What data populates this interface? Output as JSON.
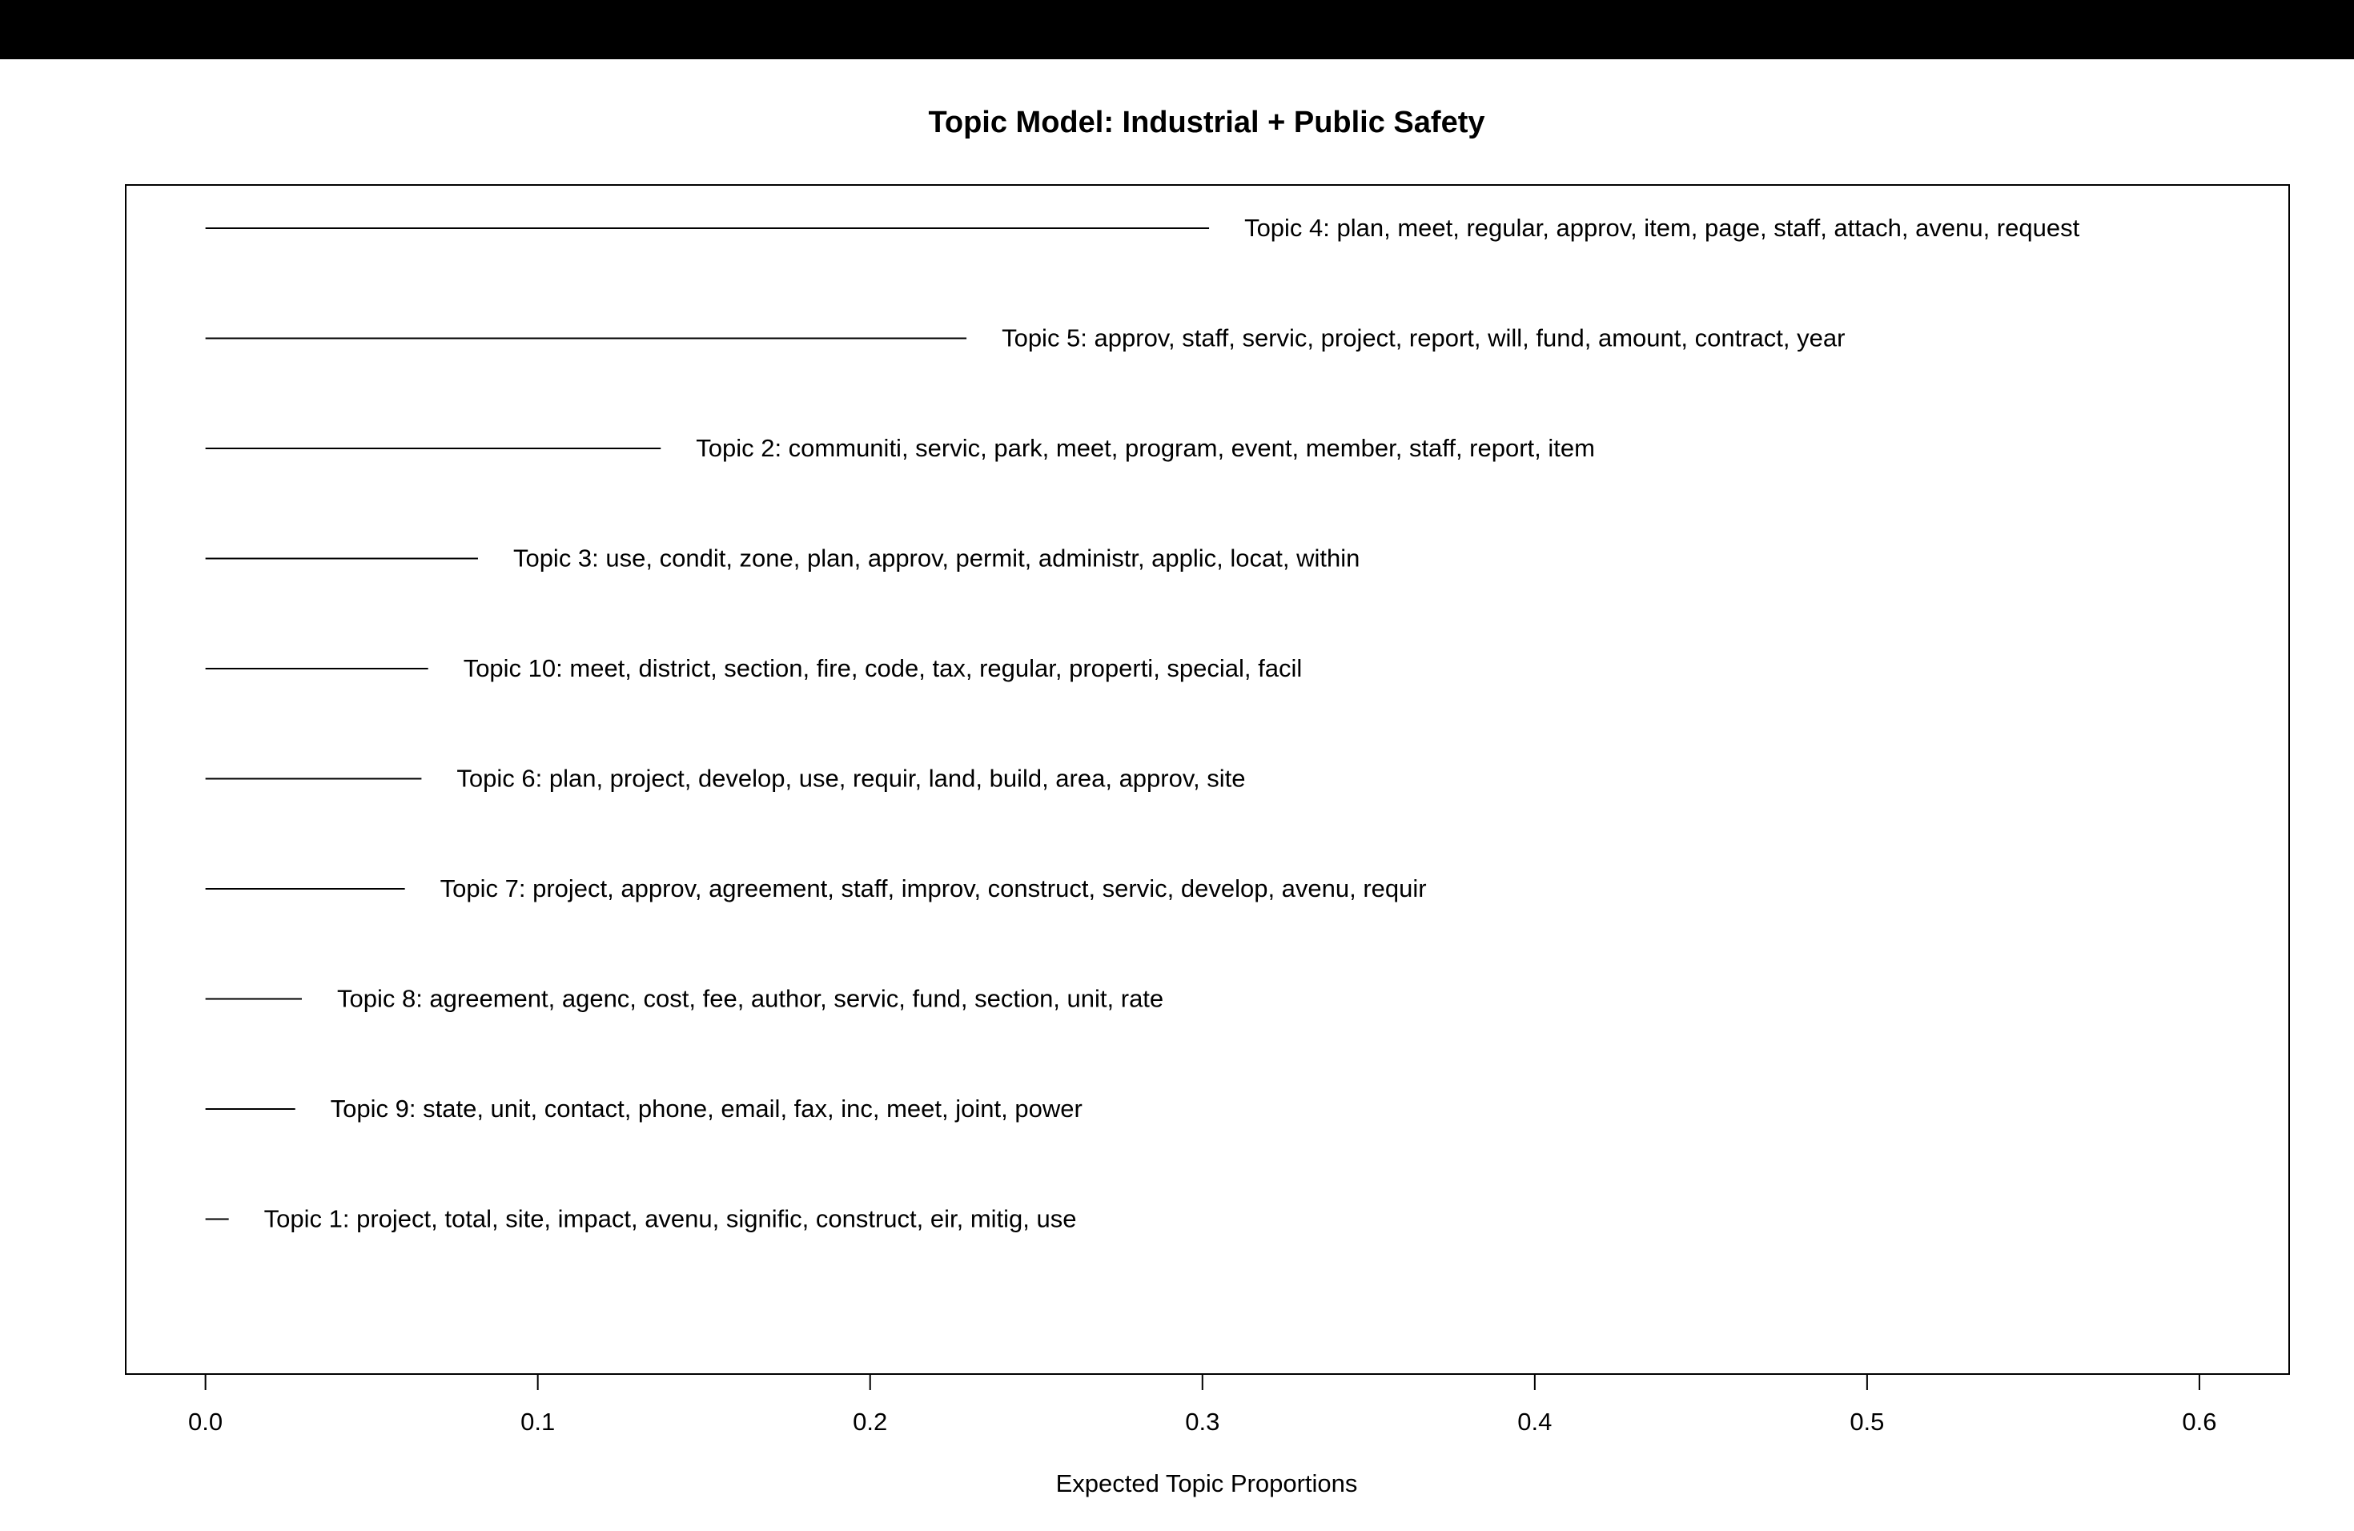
{
  "chart_data": {
    "type": "bar",
    "title": "Topic Model: Industrial + Public Safety",
    "xlabel": "Expected Topic Proportions",
    "ylabel": "",
    "xlim": [
      -0.024,
      0.627
    ],
    "x_ticks": [
      "0.0",
      "0.1",
      "0.2",
      "0.3",
      "0.4",
      "0.5",
      "0.6"
    ],
    "grid": false,
    "legend": "none",
    "orientation": "horizontal",
    "colors": {
      "line": "#000000",
      "frame": "#000000",
      "background": "#ffffff",
      "top_bar": "#000000"
    },
    "topics": [
      {
        "label": "Topic 4: plan, meet, regular, approv, item, page, staff, attach, avenu, request",
        "value": 0.302
      },
      {
        "label": "Topic 5: approv, staff, servic, project, report, will, fund, amount, contract, year",
        "value": 0.229
      },
      {
        "label": "Topic 2: communiti, servic, park, meet, program, event, member, staff, report, item",
        "value": 0.137
      },
      {
        "label": "Topic 3: use, condit, zone, plan, approv, permit, administr, applic, locat, within",
        "value": 0.082
      },
      {
        "label": "Topic 10: meet, district, section, fire, code, tax, regular, properti, special, facil",
        "value": 0.067
      },
      {
        "label": "Topic 6: plan, project, develop, use, requir, land, build, area, approv, site",
        "value": 0.065
      },
      {
        "label": "Topic 7: project, approv, agreement, staff, improv, construct, servic, develop, avenu, requir",
        "value": 0.06
      },
      {
        "label": "Topic 8: agreement, agenc, cost, fee, author, servic, fund, section, unit, rate",
        "value": 0.029
      },
      {
        "label": "Topic 9: state, unit, contact, phone, email, fax, inc, meet, joint, power",
        "value": 0.027
      },
      {
        "label": "Topic 1: project, total, site, impact, avenu, signific, construct, eir, mitig, use",
        "value": 0.007
      }
    ]
  }
}
